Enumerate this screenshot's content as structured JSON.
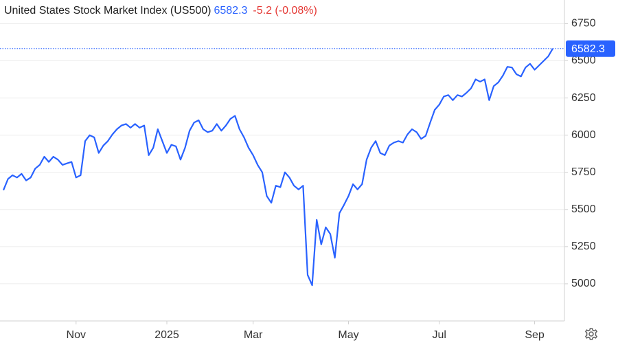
{
  "chart_data": {
    "type": "line",
    "title": "United States Stock Market Index (US500)",
    "change": "-5.2 (-0.08%)",
    "color": "#2962ff",
    "grid": true,
    "ylim": [
      4750,
      6900
    ],
    "yticks": [
      5000,
      5250,
      5500,
      5750,
      6000,
      6250,
      6500,
      6750
    ],
    "categories": [
      null,
      null,
      null,
      null,
      null,
      null,
      null,
      null,
      null,
      null,
      null,
      null,
      null,
      null,
      null,
      null,
      "Nov",
      null,
      null,
      null,
      null,
      null,
      null,
      null,
      null,
      null,
      null,
      null,
      null,
      null,
      null,
      null,
      null,
      null,
      null,
      null,
      "2025",
      null,
      null,
      null,
      null,
      null,
      null,
      null,
      null,
      null,
      null,
      null,
      null,
      null,
      null,
      null,
      null,
      null,
      null,
      "Mar",
      null,
      null,
      null,
      null,
      null,
      null,
      null,
      null,
      null,
      null,
      null,
      null,
      null,
      null,
      null,
      null,
      null,
      null,
      null,
      null,
      "May",
      null,
      null,
      null,
      null,
      null,
      null,
      null,
      null,
      null,
      null,
      null,
      null,
      null,
      null,
      null,
      null,
      null,
      null,
      null,
      "Jul",
      null,
      null,
      null,
      null,
      null,
      null,
      null,
      null,
      null,
      null,
      null,
      null,
      null,
      null,
      null,
      null,
      null,
      null,
      null,
      null,
      "Sep",
      null,
      null,
      null,
      null
    ],
    "values": [
      5630,
      5705,
      5730,
      5715,
      5740,
      5695,
      5715,
      5775,
      5800,
      5855,
      5820,
      5855,
      5835,
      5800,
      5810,
      5820,
      5715,
      5730,
      5960,
      6000,
      5985,
      5880,
      5930,
      5960,
      6005,
      6040,
      6065,
      6075,
      6050,
      6075,
      6050,
      6065,
      5865,
      5915,
      6040,
      5960,
      5880,
      5935,
      5925,
      5835,
      5915,
      6030,
      6085,
      6100,
      6040,
      6020,
      6030,
      6075,
      6030,
      6065,
      6110,
      6130,
      6040,
      5985,
      5915,
      5865,
      5800,
      5750,
      5590,
      5545,
      5660,
      5650,
      5750,
      5715,
      5660,
      5635,
      5660,
      5060,
      4990,
      5430,
      5265,
      5380,
      5335,
      5175,
      5475,
      5530,
      5590,
      5670,
      5635,
      5670,
      5835,
      5915,
      5960,
      5880,
      5865,
      5930,
      5950,
      5960,
      5950,
      6005,
      6040,
      6020,
      5975,
      5995,
      6085,
      6170,
      6205,
      6260,
      6270,
      6235,
      6270,
      6260,
      6285,
      6315,
      6375,
      6360,
      6375,
      6235,
      6330,
      6355,
      6400,
      6460,
      6455,
      6410,
      6395,
      6455,
      6480,
      6440,
      6470,
      6500,
      6530,
      6582.3
    ]
  }
}
